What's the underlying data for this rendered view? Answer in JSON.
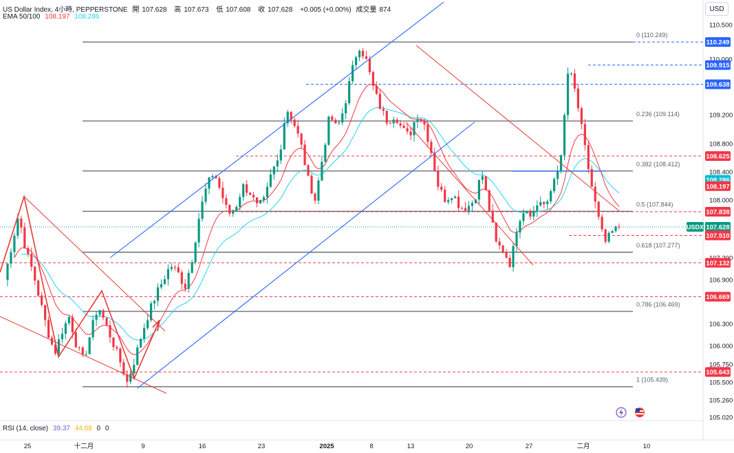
{
  "header": {
    "symbol_line": "US Dollar Index, 4小時, PEPPERSTONE",
    "open_label": "開",
    "open": "107.628",
    "high_label": "高",
    "high": "107.673",
    "low_label": "低",
    "low": "107.608",
    "close_label": "收",
    "close": "107.628",
    "change": "+0.005 (+0.00%)",
    "volume_label": "成交量",
    "volume": "874",
    "ema_label": "EMA 50/100",
    "ema50": "108.197",
    "ema100": "108.286",
    "currency": "USD"
  },
  "rsi": {
    "label": "RSI (14, close)",
    "value1": "39.37",
    "value2": "44.68",
    "value3": "0",
    "value4": "0"
  },
  "colors": {
    "up": "#089981",
    "down": "#f23645",
    "ema50": "#f23645",
    "ema100": "#22d3ee",
    "channel": "#2962ff",
    "fib": "#5d606b",
    "level": "#f23645",
    "blue_level": "#2962ff",
    "pattern": "#e53935"
  },
  "chart_data": {
    "type": "candlestick",
    "symbol": "USDX",
    "timeframe": "4H",
    "y_ticks": [
      "110.500",
      "110.000",
      "109.200",
      "108.800",
      "108.400",
      "108.000",
      "107.200",
      "106.900",
      "106.300",
      "106.000",
      "105.750",
      "105.500",
      "105.260",
      "105.020"
    ],
    "x_ticks": [
      "25",
      "十二月",
      "9",
      "16",
      "23",
      "2025",
      "8",
      "13",
      "20",
      "27",
      "二月",
      "10"
    ],
    "fib_levels": [
      {
        "label": "0 (110.249)",
        "value": 110.249
      },
      {
        "label": "0.236 (109.114)",
        "value": 109.114
      },
      {
        "label": "0.382 (108.412)",
        "value": 108.412
      },
      {
        "label": "0.5 (107.844)",
        "value": 107.844
      },
      {
        "label": "0.618 (107.277)",
        "value": 107.277
      },
      {
        "label": "0.786 (106.469)",
        "value": 106.469
      },
      {
        "label": "1 (105.439)",
        "value": 105.439
      }
    ],
    "price_tags": [
      {
        "text": "110.249",
        "value": 110.249,
        "kind": "blue"
      },
      {
        "text": "109.915",
        "value": 109.915,
        "kind": "blue"
      },
      {
        "text": "109.638",
        "value": 109.638,
        "kind": "blue"
      },
      {
        "text": "108.625",
        "value": 108.625,
        "kind": "red"
      },
      {
        "text": "108.286",
        "value": 108.286,
        "kind": "ema100"
      },
      {
        "text": "108.197",
        "value": 108.197,
        "kind": "red"
      },
      {
        "text": "107.838",
        "value": 107.838,
        "kind": "red"
      },
      {
        "text": "107.628",
        "value": 107.628,
        "kind": "current",
        "label": "USDX"
      },
      {
        "text": "107.510",
        "value": 107.51,
        "kind": "red"
      },
      {
        "text": "107.132",
        "value": 107.132,
        "kind": "red"
      },
      {
        "text": "106.669",
        "value": 106.669,
        "kind": "red"
      },
      {
        "text": "105.643",
        "value": 105.643,
        "kind": "red"
      }
    ],
    "last_price": 107.628,
    "candle_path": [
      106.9,
      107.35,
      107.8,
      107.3,
      107.0,
      106.6,
      106.2,
      105.9,
      106.2,
      106.4,
      106.0,
      105.8,
      106.2,
      106.55,
      106.3,
      106.05,
      105.8,
      105.5,
      105.8,
      106.15,
      106.45,
      106.7,
      106.9,
      107.1,
      107.0,
      106.8,
      107.2,
      107.8,
      108.2,
      108.4,
      108.1,
      107.8,
      107.9,
      108.2,
      108.1,
      107.9,
      108.0,
      108.4,
      108.6,
      109.3,
      109.1,
      108.8,
      108.3,
      108.0,
      108.6,
      109.2,
      109.0,
      109.3,
      109.8,
      110.2,
      110.0,
      109.6,
      109.3,
      109.1,
      109.2,
      109.0,
      108.9,
      109.2,
      109.1,
      108.7,
      108.2,
      108.0,
      108.1,
      107.9,
      107.9,
      108.0,
      108.4,
      107.9,
      107.4,
      107.3,
      107.1,
      107.7,
      107.9,
      107.8,
      108.0,
      107.9,
      108.3,
      108.6,
      109.9,
      109.5,
      108.9,
      108.3,
      107.8,
      107.4,
      107.55,
      107.63
    ]
  }
}
